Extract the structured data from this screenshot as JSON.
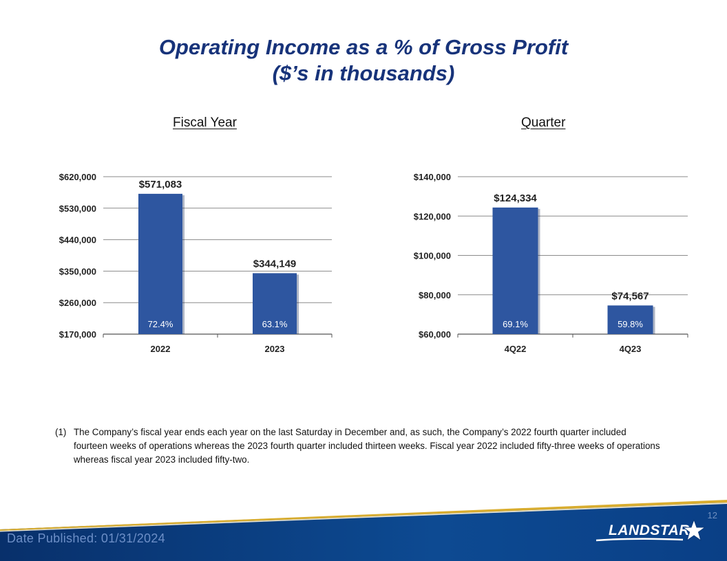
{
  "title": {
    "line1": "Operating Income as a % of Gross Profit",
    "line2": "($’s in thousands)"
  },
  "sections": {
    "left": "Fiscal Year",
    "right": "Quarter"
  },
  "colors": {
    "title": "#17337a",
    "bar": "#2e56a0",
    "footer": "#0b3a7a",
    "footer_stripe": "#d9ad2f"
  },
  "chart_data": [
    {
      "type": "bar",
      "title": "",
      "xlabel": "",
      "ylabel": "",
      "categories": [
        "2022",
        "2023"
      ],
      "values": [
        571083,
        344149
      ],
      "value_labels": [
        "$571,083",
        "$344,149"
      ],
      "inner_labels": [
        "72.4%",
        "63.1%"
      ],
      "ylim": [
        170000,
        620000
      ],
      "yticks": [
        170000,
        260000,
        350000,
        440000,
        530000,
        620000
      ],
      "ytick_labels": [
        "$170,000",
        "$260,000",
        "$350,000",
        "$440,000",
        "$530,000",
        "$620,000"
      ],
      "grid": true
    },
    {
      "type": "bar",
      "title": "",
      "xlabel": "",
      "ylabel": "",
      "categories": [
        "4Q22",
        "4Q23"
      ],
      "values": [
        124334,
        74567
      ],
      "value_labels": [
        "$124,334",
        "$74,567"
      ],
      "inner_labels": [
        "69.1%",
        "59.8%"
      ],
      "ylim": [
        60000,
        140000
      ],
      "yticks": [
        60000,
        80000,
        100000,
        120000,
        140000
      ],
      "ytick_labels": [
        "$60,000",
        "$80,000",
        "$100,000",
        "$120,000",
        "$140,000"
      ],
      "grid": true
    }
  ],
  "footnote": {
    "number": "(1)",
    "text": "The Company’s fiscal year ends each year on the last Saturday in December and, as such, the Company’s 2022 fourth quarter included fourteen weeks of operations whereas the 2023 fourth quarter included thirteen weeks. Fiscal year 2022 included fifty-three weeks of operations whereas fiscal year 2023 included fifty-two."
  },
  "footer": {
    "page_number": "12",
    "date_published": "Date Published:  01/31/2024",
    "logo_text": "LANDSTAR",
    "logo_icon": "star-icon"
  }
}
